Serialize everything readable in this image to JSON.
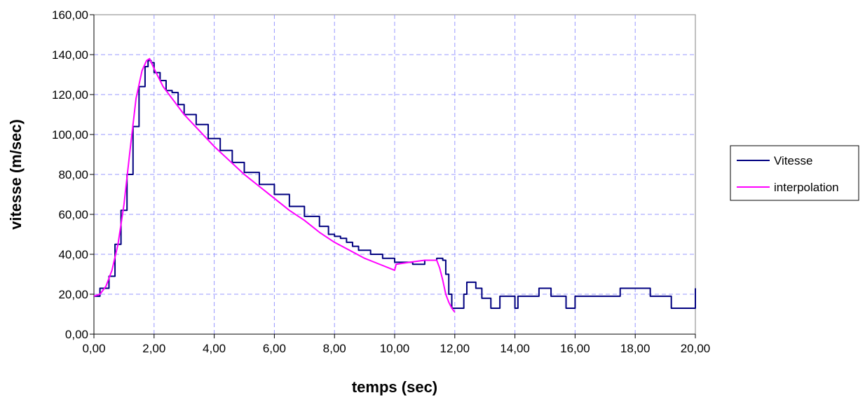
{
  "chart_data": {
    "type": "line",
    "title": "",
    "xlabel": "temps (sec)",
    "ylabel": "vitesse (m/sec)",
    "xlim": [
      0,
      20
    ],
    "ylim": [
      0,
      160
    ],
    "xticks": [
      "0,00",
      "2,00",
      "4,00",
      "6,00",
      "8,00",
      "10,00",
      "12,00",
      "14,00",
      "16,00",
      "18,00",
      "20,00"
    ],
    "yticks": [
      "0,00",
      "20,00",
      "40,00",
      "60,00",
      "80,00",
      "100,00",
      "120,00",
      "140,00",
      "160,00"
    ],
    "grid": true,
    "legend_position": "right",
    "series": [
      {
        "name": "Vitesse",
        "color": "#000080",
        "step": true,
        "x": [
          0,
          0.1,
          0.2,
          0.3,
          0.5,
          0.7,
          0.9,
          1.1,
          1.3,
          1.5,
          1.7,
          1.8,
          1.9,
          2.0,
          2.2,
          2.4,
          2.6,
          2.8,
          3.0,
          3.4,
          3.8,
          4.2,
          4.6,
          5.0,
          5.5,
          6.0,
          6.5,
          7.0,
          7.5,
          7.8,
          8.0,
          8.2,
          8.4,
          8.6,
          8.8,
          9.2,
          9.6,
          10.0,
          10.6,
          11.0,
          11.4,
          11.6,
          11.7,
          11.8,
          11.9,
          12.0,
          12.2,
          12.3,
          12.4,
          12.6,
          12.7,
          12.9,
          13.2,
          13.5,
          13.8,
          14.0,
          14.1,
          14.4,
          14.8,
          15.2,
          15.4,
          15.7,
          16.0,
          16.5,
          16.7,
          17.5,
          18.0,
          18.5,
          18.8,
          19.2,
          20.0
        ],
        "y": [
          19,
          19,
          23,
          23,
          29,
          45,
          62,
          80,
          104,
          124,
          134,
          137,
          136,
          131,
          127,
          122,
          121,
          115,
          110,
          105,
          98,
          92,
          86,
          81,
          75,
          70,
          64,
          59,
          54,
          50,
          49,
          48,
          46,
          44,
          42,
          40,
          38,
          36,
          35,
          37,
          38,
          37,
          30,
          20,
          13,
          13,
          13,
          20,
          26,
          26,
          23,
          18,
          13,
          19,
          19,
          13,
          19,
          19,
          23,
          19,
          19,
          13,
          19,
          19,
          19,
          23,
          23,
          19,
          19,
          13,
          23
        ]
      },
      {
        "name": "interpolation",
        "color": "#ff00ff",
        "step": false,
        "x": [
          0,
          0.2,
          0.4,
          0.6,
          0.8,
          1.0,
          1.2,
          1.4,
          1.6,
          1.75,
          1.85,
          2.0,
          2.3,
          2.6,
          3.0,
          3.5,
          4.0,
          4.5,
          5.0,
          5.5,
          6.0,
          6.5,
          7.0,
          7.5,
          8.0,
          8.5,
          9.0,
          9.5,
          10.0,
          10.05,
          10.5,
          11.0,
          11.4,
          11.5,
          11.6,
          11.7,
          11.8,
          11.9,
          12.0
        ],
        "y": [
          19,
          20,
          24,
          32,
          45,
          65,
          92,
          118,
          132,
          137,
          138,
          133,
          124,
          118,
          110,
          102,
          94,
          87,
          80,
          74,
          68,
          62,
          57,
          51,
          46,
          42,
          38,
          35,
          32,
          35,
          36,
          37,
          37,
          33,
          27,
          20,
          16,
          13,
          11
        ]
      }
    ]
  }
}
